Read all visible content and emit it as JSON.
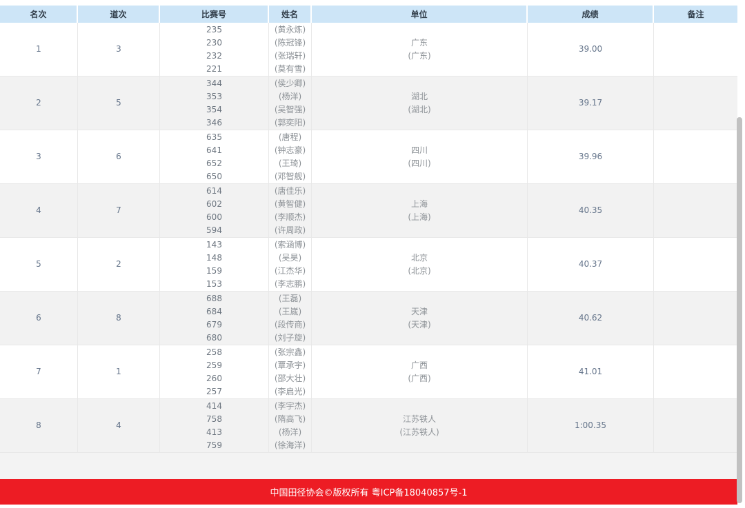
{
  "colors": {
    "header_bg": "#cde5f7",
    "header_text": "#333f4b",
    "row_alt": "#f2f2f2",
    "grid_line": "#e8e8e8",
    "num_text": "#64748a",
    "bib_text": "#6d7680",
    "name_text": "#8c9196",
    "gap_bg": "#f3f3f3",
    "footer_bg": "#ed1c24",
    "scrollbar": "#c1c1c1"
  },
  "table": {
    "columns": [
      {
        "key": "rank",
        "label": "名次"
      },
      {
        "key": "lane",
        "label": "道次"
      },
      {
        "key": "bib",
        "label": "比赛号"
      },
      {
        "key": "name",
        "label": "姓名"
      },
      {
        "key": "team",
        "label": "单位"
      },
      {
        "key": "result",
        "label": "成绩"
      },
      {
        "key": "remark",
        "label": "备注"
      }
    ],
    "rows": [
      {
        "rank": "1",
        "lane": "3",
        "bibs": [
          "235",
          "230",
          "232",
          "221"
        ],
        "names": [
          "(黄永炼)",
          "(陈冠锋)",
          "(张瑞轩)",
          "(莫有雪)"
        ],
        "team": "广东",
        "team_paren": "(广东)",
        "result": "39.00",
        "remark": ""
      },
      {
        "rank": "2",
        "lane": "5",
        "bibs": [
          "344",
          "353",
          "354",
          "346"
        ],
        "names": [
          "(侯少卿)",
          "(杨洋)",
          "(吴智强)",
          "(郭奕阳)"
        ],
        "team": "湖北",
        "team_paren": "(湖北)",
        "result": "39.17",
        "remark": ""
      },
      {
        "rank": "3",
        "lane": "6",
        "bibs": [
          "635",
          "641",
          "652",
          "650"
        ],
        "names": [
          "(唐程)",
          "(钟志豪)",
          "(王琦)",
          "(邓智舰)"
        ],
        "team": "四川",
        "team_paren": "(四川)",
        "result": "39.96",
        "remark": ""
      },
      {
        "rank": "4",
        "lane": "7",
        "bibs": [
          "614",
          "602",
          "600",
          "594"
        ],
        "names": [
          "(唐佳乐)",
          "(黄智健)",
          "(李顺杰)",
          "(许周政)"
        ],
        "team": "上海",
        "team_paren": "(上海)",
        "result": "40.35",
        "remark": ""
      },
      {
        "rank": "5",
        "lane": "2",
        "bibs": [
          "143",
          "148",
          "159",
          "153"
        ],
        "names": [
          "(索涵博)",
          "(吴昊)",
          "(江杰华)",
          "(李志鹏)"
        ],
        "team": "北京",
        "team_paren": "(北京)",
        "result": "40.37",
        "remark": ""
      },
      {
        "rank": "6",
        "lane": "8",
        "bibs": [
          "688",
          "684",
          "679",
          "680"
        ],
        "names": [
          "(王磊)",
          "(王崴)",
          "(段传商)",
          "(刘子旋)"
        ],
        "team": "天津",
        "team_paren": "(天津)",
        "result": "40.62",
        "remark": ""
      },
      {
        "rank": "7",
        "lane": "1",
        "bibs": [
          "258",
          "259",
          "260",
          "257"
        ],
        "names": [
          "(张宗鑫)",
          "(覃承宇)",
          "(邵大壮)",
          "(李启光)"
        ],
        "team": "广西",
        "team_paren": "(广西)",
        "result": "41.01",
        "remark": ""
      },
      {
        "rank": "8",
        "lane": "4",
        "bibs": [
          "414",
          "758",
          "413",
          "759"
        ],
        "names": [
          "(李宇杰)",
          "(隋高飞)",
          "(杨洋)",
          "(徐海洋)"
        ],
        "team": "江苏铁人",
        "team_paren": "(江苏铁人)",
        "result": "1:00.35",
        "remark": ""
      }
    ]
  },
  "footer": {
    "copyright": "中国田径协会©版权所有 粤ICP备18040857号-1"
  }
}
